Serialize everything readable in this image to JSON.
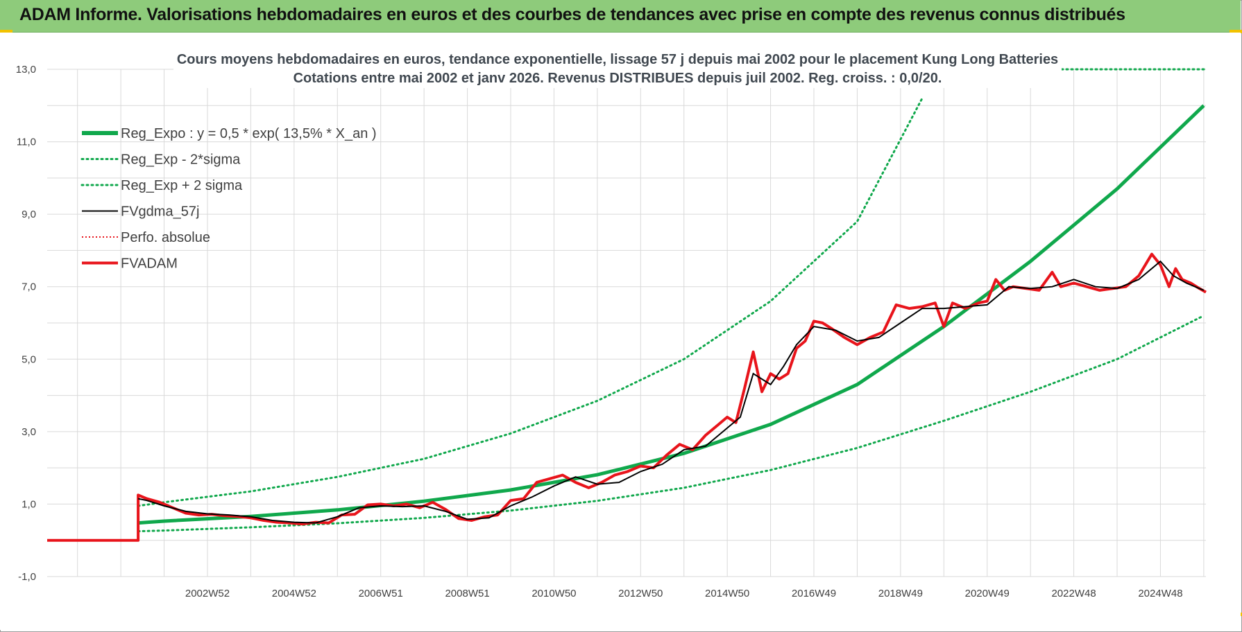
{
  "banner": {
    "title": "ADAM Informe. Valorisations hebdomadaires en euros et des courbes de tendances avec prise en compte des revenus connus distribués"
  },
  "chart_data": {
    "type": "line",
    "title_line1": "Cours moyens hebdomadaires en euros, tendance exponentielle, lissage 57 j depuis mai 2002 pour le placement Kung Long Batteries",
    "title_line2": "Cotations entre mai 2002 et janv 2026. Revenus DISTRIBUES depuis juil 2002. Reg. croiss. : 0,0/20.",
    "ylim": [
      -1,
      13
    ],
    "xlim": [
      1999.3,
      2026.05
    ],
    "yticks": [
      {
        "v": -1,
        "label": "-1,0"
      },
      {
        "v": 1,
        "label": "1,0"
      },
      {
        "v": 3,
        "label": "3,0"
      },
      {
        "v": 5,
        "label": "5,0"
      },
      {
        "v": 7,
        "label": "7,0"
      },
      {
        "v": 9,
        "label": "9,0"
      },
      {
        "v": 11,
        "label": "11,0"
      },
      {
        "v": 13,
        "label": "13,0"
      }
    ],
    "xticks": [
      {
        "x": 2003.0,
        "label": "2002W52"
      },
      {
        "x": 2005.0,
        "label": "2004W52"
      },
      {
        "x": 2007.0,
        "label": "2006W51"
      },
      {
        "x": 2009.0,
        "label": "2008W51"
      },
      {
        "x": 2011.0,
        "label": "2010W50"
      },
      {
        "x": 2013.0,
        "label": "2012W50"
      },
      {
        "x": 2015.0,
        "label": "2014W50"
      },
      {
        "x": 2017.0,
        "label": "2016W49"
      },
      {
        "x": 2019.0,
        "label": "2018W49"
      },
      {
        "x": 2021.0,
        "label": "2020W49"
      },
      {
        "x": 2023.0,
        "label": "2022W48"
      },
      {
        "x": 2025.0,
        "label": "2024W48"
      }
    ],
    "colors": {
      "green": "#10a84c",
      "red": "#e8141b",
      "black": "#000000",
      "grid": "#d9d9d9"
    },
    "series": [
      {
        "name": "Reg_Expo : y = 0,5 * exp( 13,5% *  X_an )",
        "style": "green-thick",
        "x": [
          2001.4,
          2002,
          2004,
          2006,
          2008,
          2010,
          2012,
          2014,
          2016,
          2018,
          2020,
          2022,
          2024,
          2026
        ],
        "values": [
          0.48,
          0.53,
          0.66,
          0.84,
          1.08,
          1.39,
          1.81,
          2.4,
          3.2,
          4.3,
          5.9,
          7.7,
          9.7,
          12.0
        ]
      },
      {
        "name": "Reg_Exp - 2*sigma",
        "style": "green-dotted",
        "x": [
          2001.4,
          2002,
          2004,
          2006,
          2008,
          2010,
          2012,
          2014,
          2016,
          2018,
          2020,
          2022,
          2024,
          2026
        ],
        "values": [
          0.25,
          0.27,
          0.36,
          0.47,
          0.62,
          0.82,
          1.09,
          1.45,
          1.94,
          2.55,
          3.3,
          4.1,
          5.0,
          6.2
        ]
      },
      {
        "name": "Reg_Exp + 2 sigma",
        "style": "green-dotted",
        "x": [
          2001.4,
          2002,
          2004,
          2006,
          2008,
          2010,
          2012,
          2014,
          2016,
          2018,
          2019.5
        ],
        "values": [
          0.95,
          1.05,
          1.35,
          1.75,
          2.25,
          2.95,
          3.85,
          5.0,
          6.6,
          8.8,
          12.2
        ]
      },
      {
        "name": "FVgdma_57j",
        "style": "black",
        "x": [
          2001.4,
          2001.6,
          2002,
          2002.5,
          2003,
          2003.5,
          2004,
          2004.5,
          2005,
          2005.5,
          2006,
          2006.5,
          2007,
          2007.5,
          2008,
          2008.5,
          2009,
          2009.5,
          2010,
          2010.5,
          2011,
          2011.5,
          2012,
          2012.5,
          2013,
          2013.5,
          2014,
          2014.5,
          2015,
          2015.3,
          2015.6,
          2016,
          2016.3,
          2016.6,
          2017,
          2017.5,
          2018,
          2018.5,
          2019,
          2019.5,
          2020,
          2020.5,
          2021,
          2021.5,
          2022,
          2022.5,
          2023,
          2023.5,
          2024,
          2024.5,
          2025,
          2025.3,
          2025.6,
          2026
        ],
        "values": [
          1.15,
          1.1,
          0.95,
          0.8,
          0.73,
          0.7,
          0.65,
          0.55,
          0.5,
          0.48,
          0.65,
          0.9,
          0.95,
          0.93,
          0.95,
          0.8,
          0.58,
          0.62,
          0.95,
          1.2,
          1.5,
          1.75,
          1.55,
          1.6,
          1.9,
          2.1,
          2.5,
          2.6,
          3.1,
          3.4,
          4.6,
          4.3,
          4.8,
          5.4,
          5.9,
          5.8,
          5.5,
          5.6,
          6.0,
          6.4,
          6.4,
          6.45,
          6.5,
          7.0,
          6.95,
          7.0,
          7.2,
          7.0,
          6.95,
          7.2,
          7.7,
          7.3,
          7.1,
          6.9
        ]
      },
      {
        "name": "Perfo. absolue",
        "style": "red-dotted",
        "x": [],
        "values": []
      },
      {
        "name": "FVADAM",
        "style": "red-thick",
        "x": [
          1999.3,
          2001.4,
          2001.4,
          2001.6,
          2001.9,
          2002.2,
          2002.5,
          2002.8,
          2003.1,
          2003.4,
          2003.7,
          2004.0,
          2004.3,
          2004.6,
          2004.9,
          2005.2,
          2005.5,
          2005.8,
          2006.1,
          2006.4,
          2006.7,
          2007.0,
          2007.3,
          2007.6,
          2007.9,
          2008.2,
          2008.5,
          2008.8,
          2009.1,
          2009.4,
          2009.7,
          2010.0,
          2010.3,
          2010.6,
          2010.9,
          2011.2,
          2011.5,
          2011.8,
          2012.1,
          2012.4,
          2012.7,
          2013.0,
          2013.3,
          2013.6,
          2013.9,
          2014.2,
          2014.5,
          2014.8,
          2015.0,
          2015.2,
          2015.4,
          2015.6,
          2015.8,
          2016.0,
          2016.2,
          2016.4,
          2016.6,
          2016.8,
          2017.0,
          2017.2,
          2017.4,
          2017.7,
          2018.0,
          2018.3,
          2018.6,
          2018.9,
          2019.2,
          2019.5,
          2019.8,
          2020.0,
          2020.2,
          2020.5,
          2020.8,
          2021.0,
          2021.2,
          2021.4,
          2021.6,
          2021.9,
          2022.2,
          2022.5,
          2022.7,
          2023.0,
          2023.3,
          2023.6,
          2023.9,
          2024.2,
          2024.5,
          2024.8,
          2025.0,
          2025.2,
          2025.35,
          2025.5,
          2025.7,
          2025.9,
          2026.05
        ],
        "values": [
          0.0,
          0.0,
          1.25,
          1.15,
          1.05,
          0.9,
          0.75,
          0.7,
          0.72,
          0.68,
          0.66,
          0.62,
          0.55,
          0.5,
          0.48,
          0.45,
          0.5,
          0.48,
          0.7,
          0.72,
          0.98,
          1.0,
          0.95,
          1.0,
          0.9,
          1.05,
          0.85,
          0.6,
          0.55,
          0.65,
          0.7,
          1.1,
          1.15,
          1.6,
          1.7,
          1.8,
          1.6,
          1.45,
          1.6,
          1.8,
          1.9,
          2.05,
          2.0,
          2.35,
          2.65,
          2.5,
          2.9,
          3.2,
          3.4,
          3.25,
          4.2,
          5.2,
          4.1,
          4.6,
          4.45,
          4.6,
          5.3,
          5.5,
          6.05,
          6.0,
          5.85,
          5.6,
          5.4,
          5.6,
          5.75,
          6.5,
          6.4,
          6.45,
          6.55,
          5.9,
          6.55,
          6.4,
          6.55,
          6.6,
          7.2,
          6.9,
          7.0,
          6.95,
          6.9,
          7.4,
          7.0,
          7.1,
          7.0,
          6.9,
          6.95,
          7.0,
          7.3,
          7.9,
          7.6,
          7.0,
          7.5,
          7.2,
          7.1,
          6.95,
          6.85
        ]
      }
    ],
    "legend": [
      {
        "label": "Reg_Expo : y = 0,5 * exp( 13,5% *  X_an )",
        "style": "green-thick"
      },
      {
        "label": "Reg_Exp - 2*sigma",
        "style": "green-dotted"
      },
      {
        "label": "Reg_Exp + 2 sigma",
        "style": "green-dotted"
      },
      {
        "label": "FVgdma_57j",
        "style": "black"
      },
      {
        "label": "Perfo. absolue",
        "style": "red-dotted"
      },
      {
        "label": "FVADAM",
        "style": "red-thick"
      }
    ]
  }
}
